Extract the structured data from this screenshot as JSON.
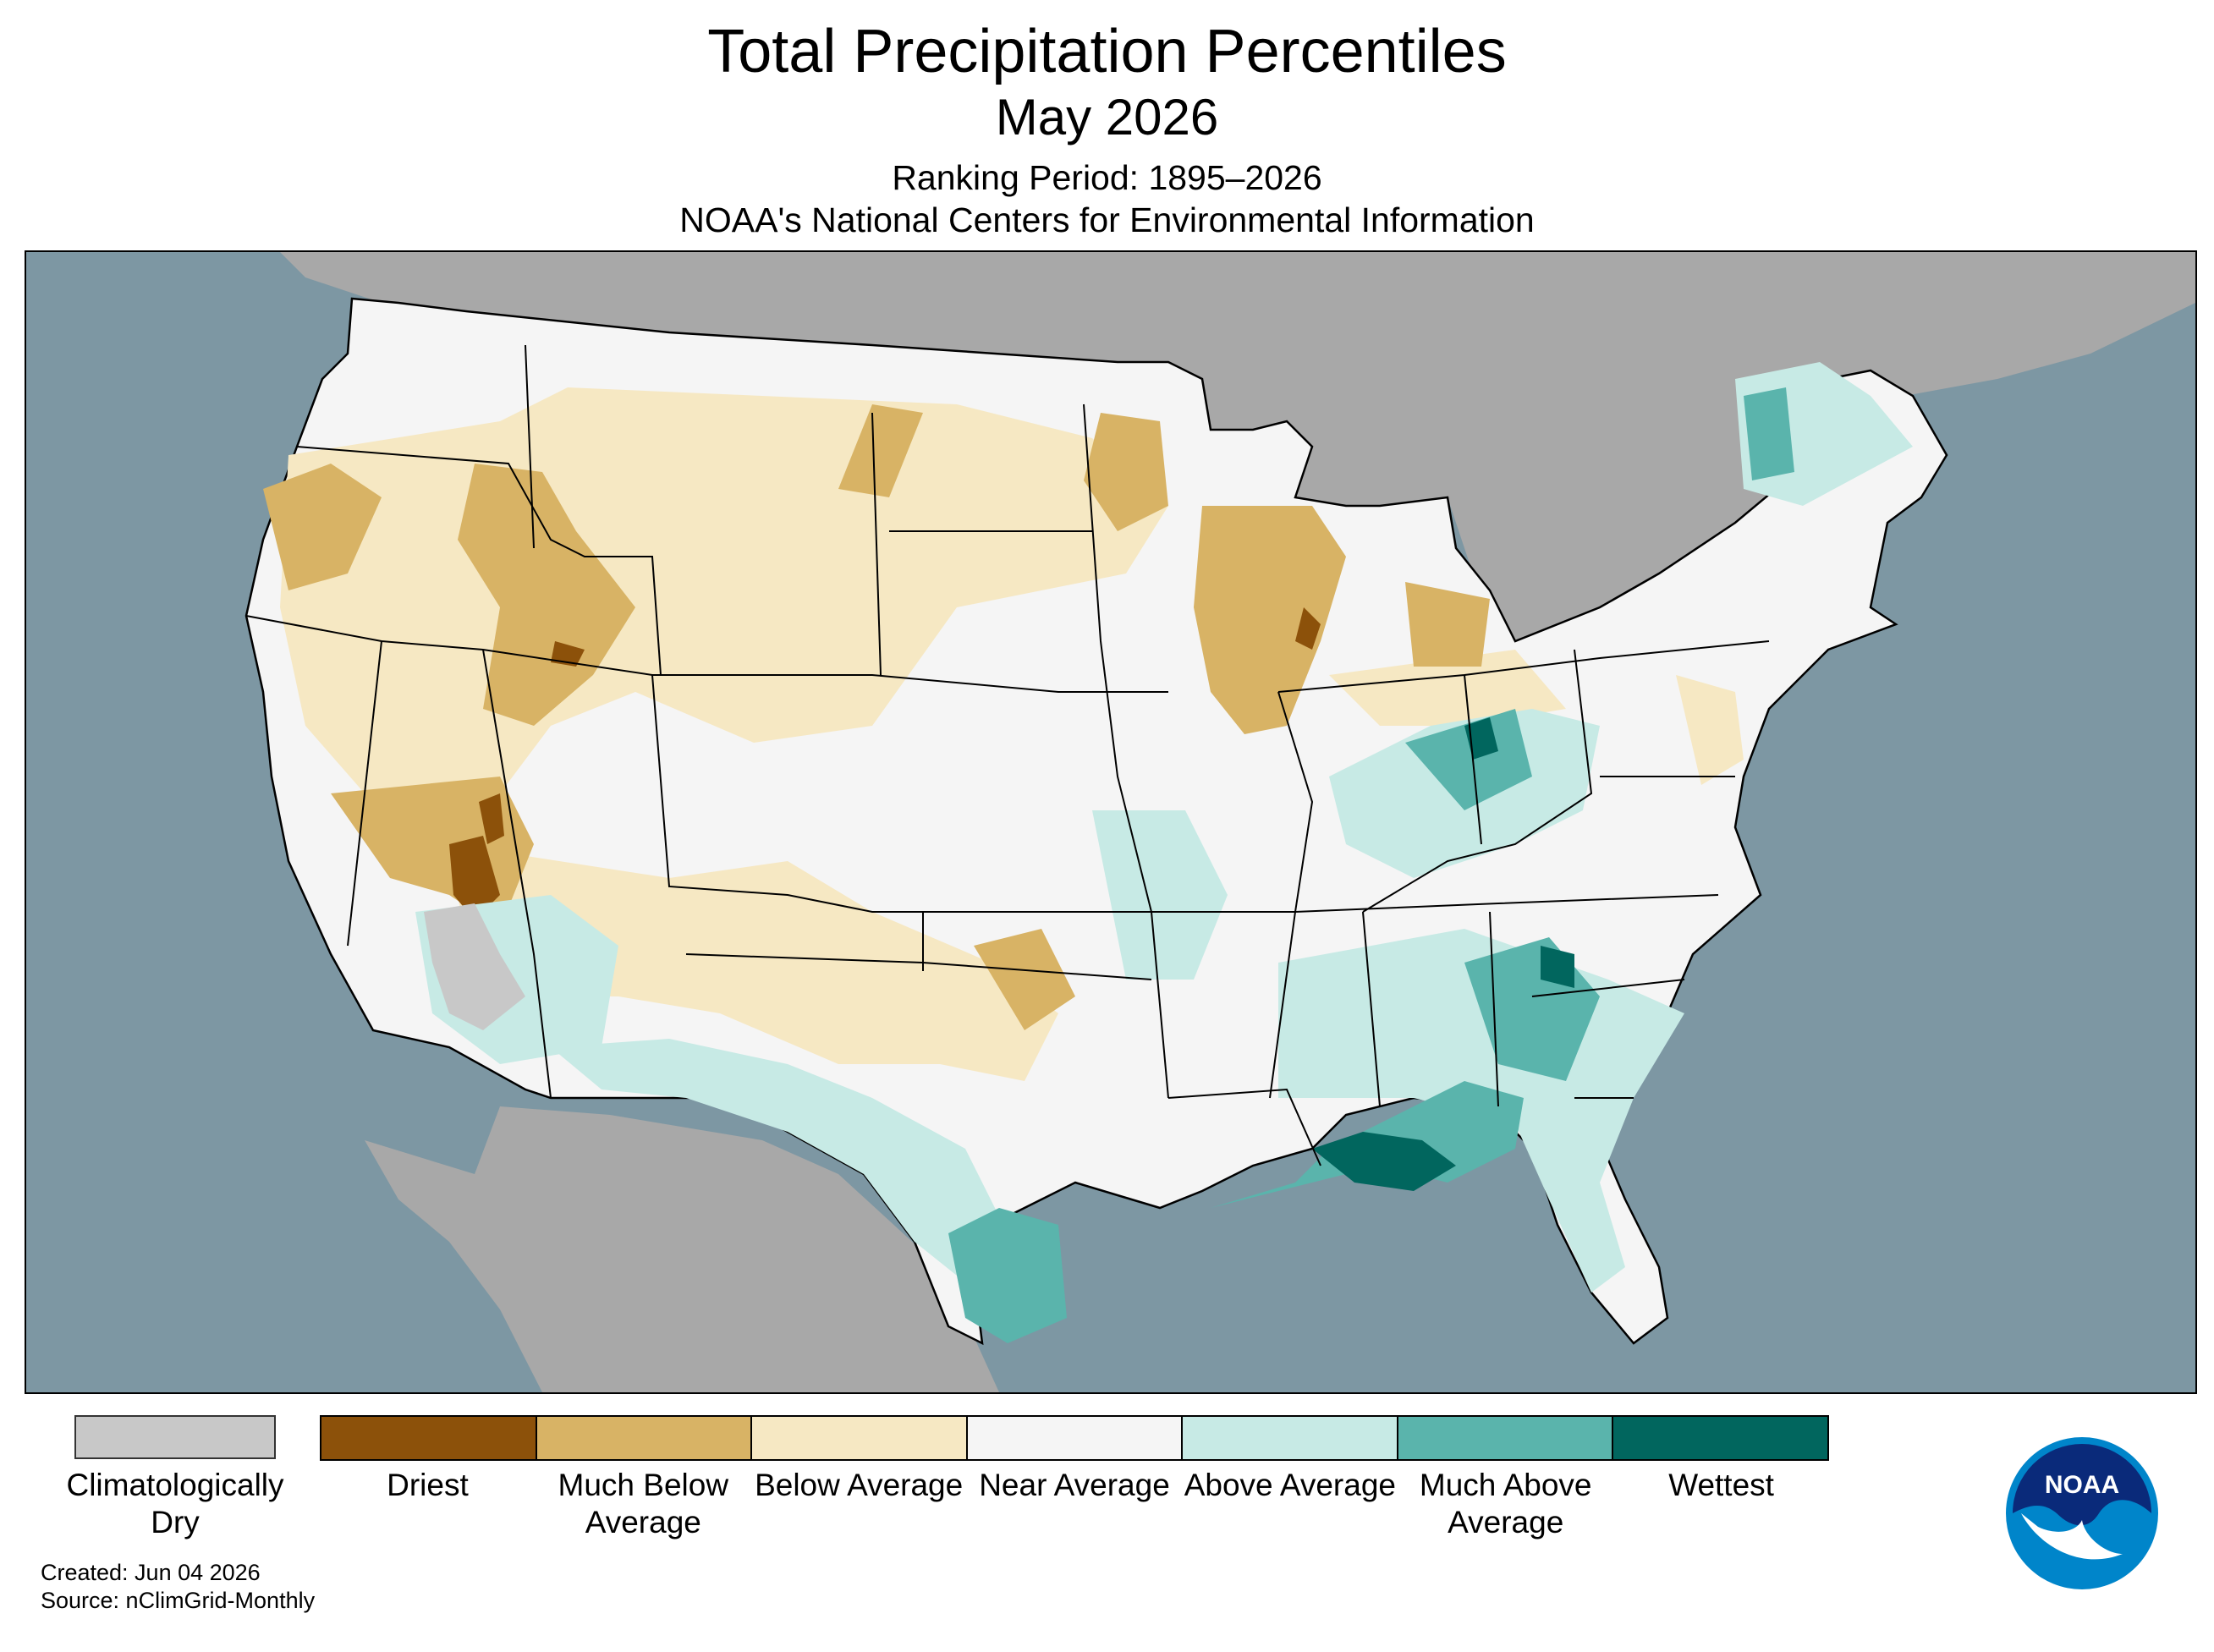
{
  "header": {
    "title": "Total Precipitation Percentiles",
    "period": "May 2026",
    "ranking": "Ranking Period: 1895–2026",
    "source_org": "NOAA's National Centers for Environmental Information"
  },
  "legend": {
    "dry_label": "Climatologically Dry",
    "dry_color": "#c8c8c8",
    "categories": [
      {
        "label": "Driest",
        "color": "#8c510a"
      },
      {
        "label": "Much Below Average",
        "color": "#d8b365"
      },
      {
        "label": "Below Average",
        "color": "#f6e8c3"
      },
      {
        "label": "Near Average",
        "color": "#f5f5f5"
      },
      {
        "label": "Above Average",
        "color": "#c7eae5"
      },
      {
        "label": "Much Above Average",
        "color": "#5ab4ac"
      },
      {
        "label": "Wettest",
        "color": "#01665e"
      }
    ]
  },
  "footer": {
    "created": "Created: Jun 04 2026",
    "source": "Source: nClimGrid-Monthly"
  },
  "logo": {
    "text": "NOAA",
    "icon": "noaa-logo-icon"
  },
  "colors": {
    "ocean": "#7d97a3",
    "land_outside": "#a8a8a8",
    "border": "#000000"
  }
}
